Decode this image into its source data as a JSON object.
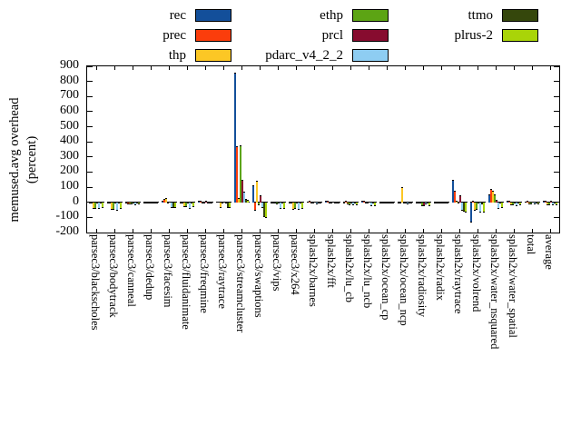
{
  "chart_data": {
    "type": "bar",
    "title": "",
    "ylabel_lines": [
      "memused.avg overhead",
      "(percent)"
    ],
    "ylim": [
      -200,
      900
    ],
    "yticks": [
      900,
      800,
      700,
      600,
      500,
      400,
      300,
      200,
      100,
      0,
      -100,
      -200
    ],
    "grid": false,
    "legend_position": "top-3-columns",
    "legend_columns": [
      [
        0,
        1,
        2
      ],
      [
        3,
        4,
        5
      ],
      [
        6,
        7
      ]
    ],
    "categories": [
      "parsec3/blackscholes",
      "parsec3/bodytrack",
      "parsec3/canneal",
      "parsec3/dedup",
      "parsec3/facesim",
      "parsec3/fluidanimate",
      "parsec3/freqmine",
      "parsec3/raytrace",
      "parsec3/streamcluster",
      "parsec3/swaptions",
      "parsec3/vips",
      "parsec3/x264",
      "splash2x/barnes",
      "splash2x/fft",
      "splash2x/lu_cb",
      "splash2x/lu_ncb",
      "splash2x/ocean_cp",
      "splash2x/ocean_ncp",
      "splash2x/radiosity",
      "splash2x/radix",
      "splash2x/raytrace",
      "splash2x/volrend",
      "splash2x/water_nsquared",
      "splash2x/water_spatial",
      "total",
      "average"
    ],
    "series": [
      {
        "name": "rec",
        "color": "#134f9a",
        "values": [
          -5,
          -5,
          -10,
          -5,
          10,
          -5,
          10,
          5,
          860,
          115,
          -5,
          -8,
          5,
          8,
          -5,
          8,
          -5,
          -5,
          -5,
          -5,
          150,
          -135,
          55,
          10,
          5,
          10
        ]
      },
      {
        "name": "prec",
        "color": "#fb3d0c",
        "values": [
          -8,
          -8,
          -12,
          -5,
          25,
          -8,
          12,
          5,
          370,
          -55,
          -8,
          -10,
          8,
          10,
          10,
          10,
          -5,
          -8,
          -8,
          -5,
          75,
          10,
          90,
          8,
          8,
          12
        ]
      },
      {
        "name": "thp",
        "color": "#fcc725",
        "values": [
          -45,
          -50,
          -15,
          -8,
          30,
          -30,
          -5,
          -35,
          30,
          140,
          -10,
          -50,
          -10,
          -5,
          -15,
          -10,
          -8,
          100,
          -10,
          -10,
          10,
          -55,
          75,
          -20,
          -12,
          -18
        ]
      },
      {
        "name": "ethp",
        "color": "#5ca414",
        "values": [
          -45,
          -50,
          -15,
          -8,
          -5,
          -30,
          -8,
          -10,
          375,
          -20,
          -15,
          -45,
          -10,
          -8,
          -18,
          -10,
          -8,
          -10,
          -28,
          -8,
          -10,
          -50,
          55,
          -22,
          -12,
          -18
        ]
      },
      {
        "name": "prcl",
        "color": "#870c2f",
        "values": [
          -5,
          -5,
          -10,
          -5,
          5,
          -5,
          8,
          5,
          150,
          45,
          -5,
          -8,
          5,
          5,
          -5,
          5,
          -5,
          -5,
          -25,
          -5,
          45,
          -5,
          15,
          -5,
          5,
          8
        ]
      },
      {
        "name": "pdarc_v4_2_2",
        "color": "#8ecdf2",
        "values": [
          -45,
          -55,
          -18,
          -8,
          -40,
          -45,
          -10,
          -10,
          70,
          -35,
          -45,
          -50,
          -12,
          -8,
          -20,
          -28,
          -8,
          -12,
          -12,
          -10,
          -55,
          -70,
          -45,
          -25,
          -15,
          -22
        ]
      },
      {
        "name": "ttmo",
        "color": "#35470c",
        "values": [
          -8,
          -8,
          -10,
          -5,
          -40,
          -8,
          -5,
          -35,
          20,
          -100,
          -10,
          -10,
          -5,
          -5,
          -8,
          -8,
          -5,
          -8,
          -8,
          -5,
          -60,
          -15,
          -10,
          -8,
          -5,
          -8
        ]
      },
      {
        "name": "plrus-2",
        "color": "#a9d408",
        "values": [
          -40,
          -45,
          -15,
          -8,
          -35,
          -30,
          -8,
          -35,
          15,
          -105,
          -45,
          -45,
          -10,
          -5,
          -18,
          -25,
          -8,
          -10,
          -28,
          -8,
          -65,
          -70,
          -40,
          -22,
          -12,
          -20
        ]
      }
    ]
  }
}
